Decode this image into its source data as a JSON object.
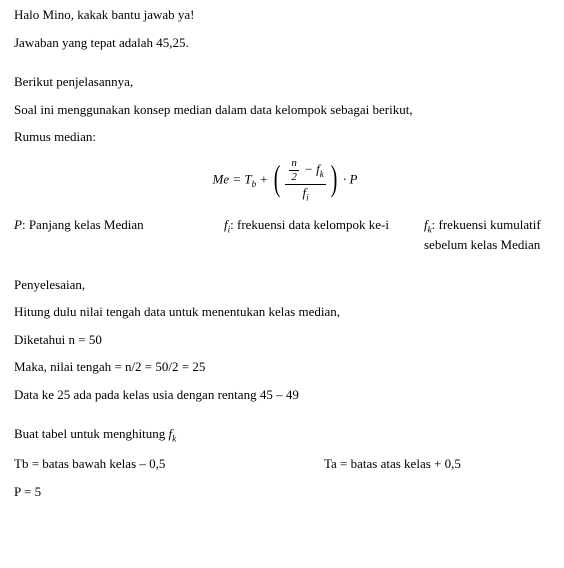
{
  "greeting": "Halo Mino, kakak bantu jawab ya!",
  "answer_line": "Jawaban yang tepat adalah 45,25.",
  "explain_head": "Berikut penjelasannya,",
  "concept_line": "Soal ini menggunakan konsep median dalam data kelompok sebagai berikut,",
  "rumus_label": "Rumus median:",
  "formula": {
    "Me": "Me",
    "eq": " = ",
    "Tb": "T",
    "Tb_sub": "b",
    "plus": " + ",
    "num_left": "n",
    "num_left_den": "2",
    "minus": " − ",
    "fk": "f",
    "fk_sub": "k",
    "fi": "f",
    "fi_sub": "i",
    "dot": " · ",
    "P": "P"
  },
  "defs": {
    "P_label": "P",
    "P_text": ": Panjang kelas Median",
    "fi_label": "f",
    "fi_sub": "i",
    "fi_text": ": frekuensi data kelompok ke-i",
    "fk_label": "f",
    "fk_sub": "k",
    "fk_text": ": frekuensi kumulatif sebelum kelas Median"
  },
  "peny": "Penyelesaian,",
  "step1": "Hitung dulu nilai tengah data untuk menentukan kelas median,",
  "diketahui": "Diketahui n = 50",
  "maka": "Maka, nilai tengah = n/2 = 50/2 = 25",
  "data25": "Data ke 25 ada pada kelas usia dengan rentang 45 – 49",
  "tabel_head_pre": "Buat tabel untuk menghitung ",
  "tabel_head_f": "f",
  "tabel_head_sub": "k",
  "tb_line": "Tb = batas bawah kelas – 0,5",
  "ta_line": "Ta = batas atas kelas + 0,5",
  "p_line": "P = 5"
}
